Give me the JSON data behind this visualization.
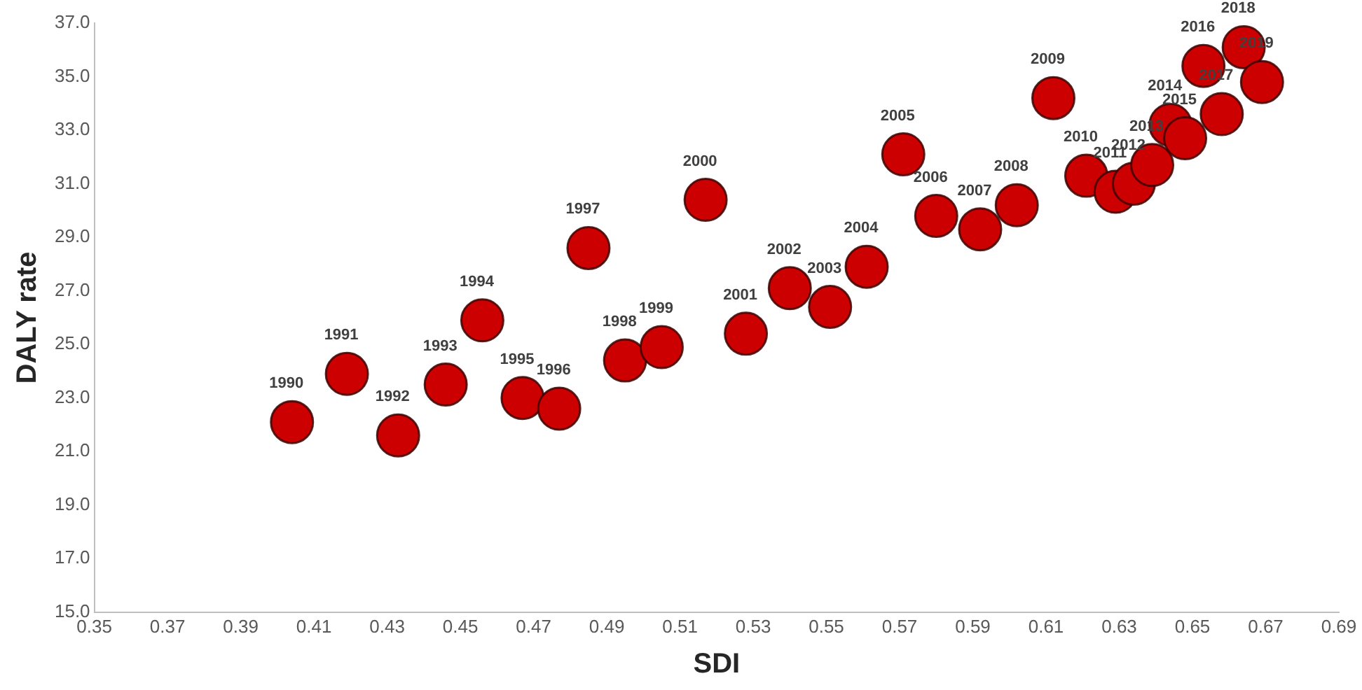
{
  "chart_data": {
    "type": "scatter",
    "xlabel": "SDI",
    "ylabel": "DALY rate",
    "marker": "circle",
    "grid": false,
    "legend": false,
    "x": [
      0.404,
      0.419,
      0.433,
      0.446,
      0.456,
      0.467,
      0.477,
      0.485,
      0.495,
      0.505,
      0.517,
      0.528,
      0.54,
      0.551,
      0.561,
      0.571,
      0.58,
      0.592,
      0.602,
      0.612,
      0.621,
      0.629,
      0.634,
      0.639,
      0.644,
      0.648,
      0.653,
      0.658,
      0.664,
      0.669
    ],
    "series": [
      {
        "color": "#cc0000",
        "values": [
          22.1,
          23.9,
          21.6,
          23.5,
          25.9,
          23.0,
          22.6,
          28.6,
          24.4,
          24.9,
          30.4,
          25.4,
          27.1,
          26.4,
          27.9,
          32.1,
          29.8,
          29.3,
          30.2,
          34.2,
          31.3,
          30.7,
          31.0,
          31.7,
          33.2,
          32.7,
          35.4,
          33.6,
          36.1,
          34.8
        ]
      }
    ],
    "annotations": [
      {
        "text": "1990",
        "x": 0.404,
        "y": 22.1
      },
      {
        "text": "1991",
        "x": 0.419,
        "y": 23.9
      },
      {
        "text": "1992",
        "x": 0.433,
        "y": 21.6
      },
      {
        "text": "1993",
        "x": 0.446,
        "y": 23.5
      },
      {
        "text": "1994",
        "x": 0.456,
        "y": 25.9
      },
      {
        "text": "1995",
        "x": 0.467,
        "y": 23.0
      },
      {
        "text": "1996",
        "x": 0.477,
        "y": 22.6
      },
      {
        "text": "1997",
        "x": 0.485,
        "y": 28.6
      },
      {
        "text": "1998",
        "x": 0.495,
        "y": 24.4
      },
      {
        "text": "1999",
        "x": 0.505,
        "y": 24.9
      },
      {
        "text": "2000",
        "x": 0.517,
        "y": 30.4
      },
      {
        "text": "2001",
        "x": 0.528,
        "y": 25.4
      },
      {
        "text": "2002",
        "x": 0.54,
        "y": 27.1
      },
      {
        "text": "2003",
        "x": 0.551,
        "y": 26.4
      },
      {
        "text": "2004",
        "x": 0.561,
        "y": 27.9
      },
      {
        "text": "2005",
        "x": 0.571,
        "y": 32.1
      },
      {
        "text": "2006",
        "x": 0.58,
        "y": 29.8
      },
      {
        "text": "2007",
        "x": 0.592,
        "y": 29.3
      },
      {
        "text": "2008",
        "x": 0.602,
        "y": 30.2
      },
      {
        "text": "2009",
        "x": 0.612,
        "y": 34.2
      },
      {
        "text": "2010",
        "x": 0.621,
        "y": 31.3
      },
      {
        "text": "2011",
        "x": 0.629,
        "y": 30.7
      },
      {
        "text": "2012",
        "x": 0.634,
        "y": 31.0
      },
      {
        "text": "2013",
        "x": 0.639,
        "y": 31.7
      },
      {
        "text": "2014",
        "x": 0.644,
        "y": 33.2
      },
      {
        "text": "2015",
        "x": 0.648,
        "y": 32.7
      },
      {
        "text": "2016",
        "x": 0.653,
        "y": 35.4
      },
      {
        "text": "2017",
        "x": 0.658,
        "y": 33.6
      },
      {
        "text": "2018",
        "x": 0.664,
        "y": 36.1
      },
      {
        "text": "2019",
        "x": 0.669,
        "y": 34.8
      }
    ],
    "xlim": [
      0.35,
      0.69
    ],
    "xticks": [
      0.35,
      0.37,
      0.39,
      0.41,
      0.43,
      0.45,
      0.47,
      0.49,
      0.51,
      0.53,
      0.55,
      0.57,
      0.59,
      0.61,
      0.63,
      0.65,
      0.67,
      0.69
    ],
    "ylim": [
      15,
      37
    ],
    "yticks": [
      {
        "value": 15,
        "label": "15.0"
      },
      {
        "value": 17,
        "label": "17.0"
      },
      {
        "value": 19,
        "label": "19.0"
      },
      {
        "value": 21,
        "label": "21.0"
      },
      {
        "value": 23,
        "label": "23.0"
      },
      {
        "value": 25,
        "label": "25.0"
      },
      {
        "value": 27,
        "label": "27.0"
      },
      {
        "value": 29,
        "label": "29.0"
      },
      {
        "value": 31,
        "label": "31.0"
      },
      {
        "value": 33,
        "label": "33.0"
      },
      {
        "value": 35,
        "label": "35.0"
      },
      {
        "value": 37,
        "label": "37.0"
      }
    ]
  }
}
